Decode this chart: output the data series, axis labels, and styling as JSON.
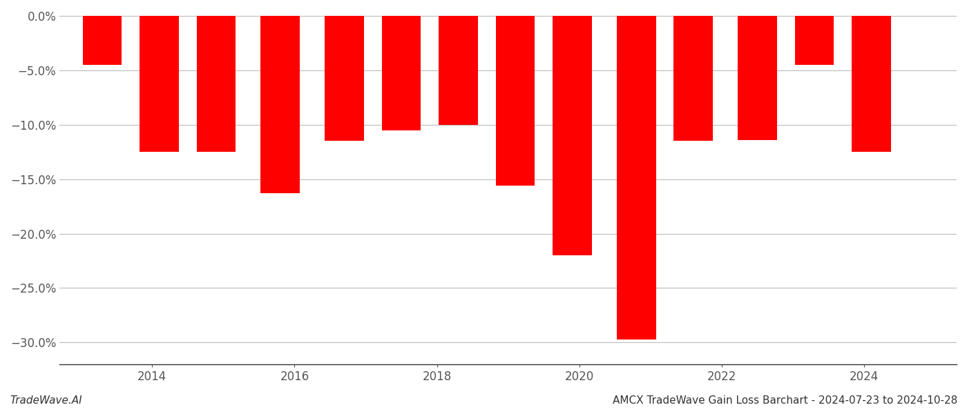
{
  "x_positions": [
    2013.3,
    2014.1,
    2014.9,
    2015.8,
    2016.7,
    2017.5,
    2018.3,
    2019.1,
    2019.9,
    2020.8,
    2021.6,
    2022.5,
    2023.3,
    2024.1
  ],
  "values": [
    -0.045,
    -0.125,
    -0.125,
    -0.163,
    -0.115,
    -0.105,
    -0.1,
    -0.156,
    -0.22,
    -0.297,
    -0.115,
    -0.114,
    -0.045,
    -0.125
  ],
  "bar_color": "#ff0000",
  "background_color": "#ffffff",
  "grid_color": "#bbbbbb",
  "ylim": [
    -0.32,
    0.005
  ],
  "yticks": [
    0.0,
    -0.05,
    -0.1,
    -0.15,
    -0.2,
    -0.25,
    -0.3
  ],
  "xticks": [
    2014,
    2016,
    2018,
    2020,
    2022,
    2024
  ],
  "xlim": [
    2012.7,
    2025.3
  ],
  "title_right": "AMCX TradeWave Gain Loss Barchart - 2024-07-23 to 2024-10-28",
  "title_left": "TradeWave.AI",
  "bar_width": 0.55
}
